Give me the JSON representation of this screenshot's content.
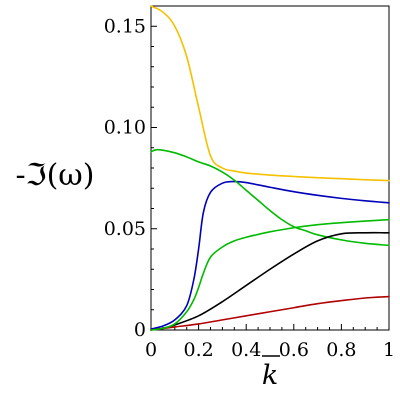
{
  "chart_data": {
    "type": "line",
    "xlabel": "k",
    "ylabel": "-ℑ(ω)",
    "xlim": [
      0,
      1
    ],
    "ylim": [
      0,
      0.16
    ],
    "xticks": [
      "0",
      "0.2",
      "0.4",
      "0.6",
      "0.8",
      "1"
    ],
    "yticks": [
      "0",
      "0.05",
      "0.10",
      "0.15"
    ],
    "grid": false,
    "legend": "none",
    "series": [
      {
        "color": "#f5c000",
        "x": [
          0,
          0.05,
          0.1,
          0.15,
          0.2,
          0.25,
          0.3,
          0.35,
          0.4,
          0.5,
          0.6,
          0.7,
          0.8,
          0.9,
          1.0
        ],
        "y": [
          0.16,
          0.157,
          0.15,
          0.135,
          0.11,
          0.086,
          0.08,
          0.0785,
          0.0775,
          0.0765,
          0.0758,
          0.0752,
          0.0747,
          0.0742,
          0.0738
        ]
      },
      {
        "color": "#0000b8",
        "x": [
          0,
          0.05,
          0.1,
          0.15,
          0.18,
          0.2,
          0.22,
          0.25,
          0.3,
          0.35,
          0.4,
          0.5,
          0.6,
          0.7,
          0.8,
          0.9,
          1.0
        ],
        "y": [
          0.0005,
          0.002,
          0.005,
          0.012,
          0.025,
          0.04,
          0.058,
          0.068,
          0.0725,
          0.0733,
          0.0728,
          0.0705,
          0.0683,
          0.0665,
          0.065,
          0.0638,
          0.0628
        ]
      },
      {
        "color": "#00bb00",
        "x": [
          0,
          0.02,
          0.05,
          0.1,
          0.15,
          0.2,
          0.25,
          0.3,
          0.35,
          0.4,
          0.45,
          0.5,
          0.55,
          0.6,
          0.65,
          0.7,
          0.8,
          0.9,
          1.0
        ],
        "y": [
          0.088,
          0.089,
          0.0888,
          0.0875,
          0.0855,
          0.083,
          0.081,
          0.078,
          0.074,
          0.069,
          0.064,
          0.059,
          0.0545,
          0.051,
          0.049,
          0.047,
          0.0445,
          0.0428,
          0.0418
        ]
      },
      {
        "color": "#000000",
        "x": [
          0,
          0.05,
          0.1,
          0.2,
          0.3,
          0.4,
          0.5,
          0.6,
          0.7,
          0.8,
          0.9,
          1.0
        ],
        "y": [
          0.0,
          0.0008,
          0.0025,
          0.007,
          0.014,
          0.022,
          0.03,
          0.0375,
          0.044,
          0.0475,
          0.048,
          0.048
        ]
      },
      {
        "color": "#b00000",
        "x": [
          0,
          0.1,
          0.2,
          0.3,
          0.4,
          0.5,
          0.6,
          0.7,
          0.8,
          0.9,
          1.0
        ],
        "y": [
          0.0,
          0.0015,
          0.003,
          0.005,
          0.007,
          0.009,
          0.011,
          0.013,
          0.0145,
          0.0158,
          0.0165
        ]
      },
      {
        "color": "#00bb00",
        "x": [
          0,
          0.05,
          0.1,
          0.15,
          0.18,
          0.2,
          0.22,
          0.25,
          0.3,
          0.35,
          0.4,
          0.45,
          0.5,
          0.6,
          0.7,
          0.8,
          0.9,
          1.0
        ],
        "y": [
          0.0,
          0.0008,
          0.003,
          0.009,
          0.015,
          0.021,
          0.028,
          0.036,
          0.041,
          0.044,
          0.0458,
          0.0472,
          0.0485,
          0.0505,
          0.052,
          0.053,
          0.0538,
          0.0545
        ]
      }
    ]
  }
}
